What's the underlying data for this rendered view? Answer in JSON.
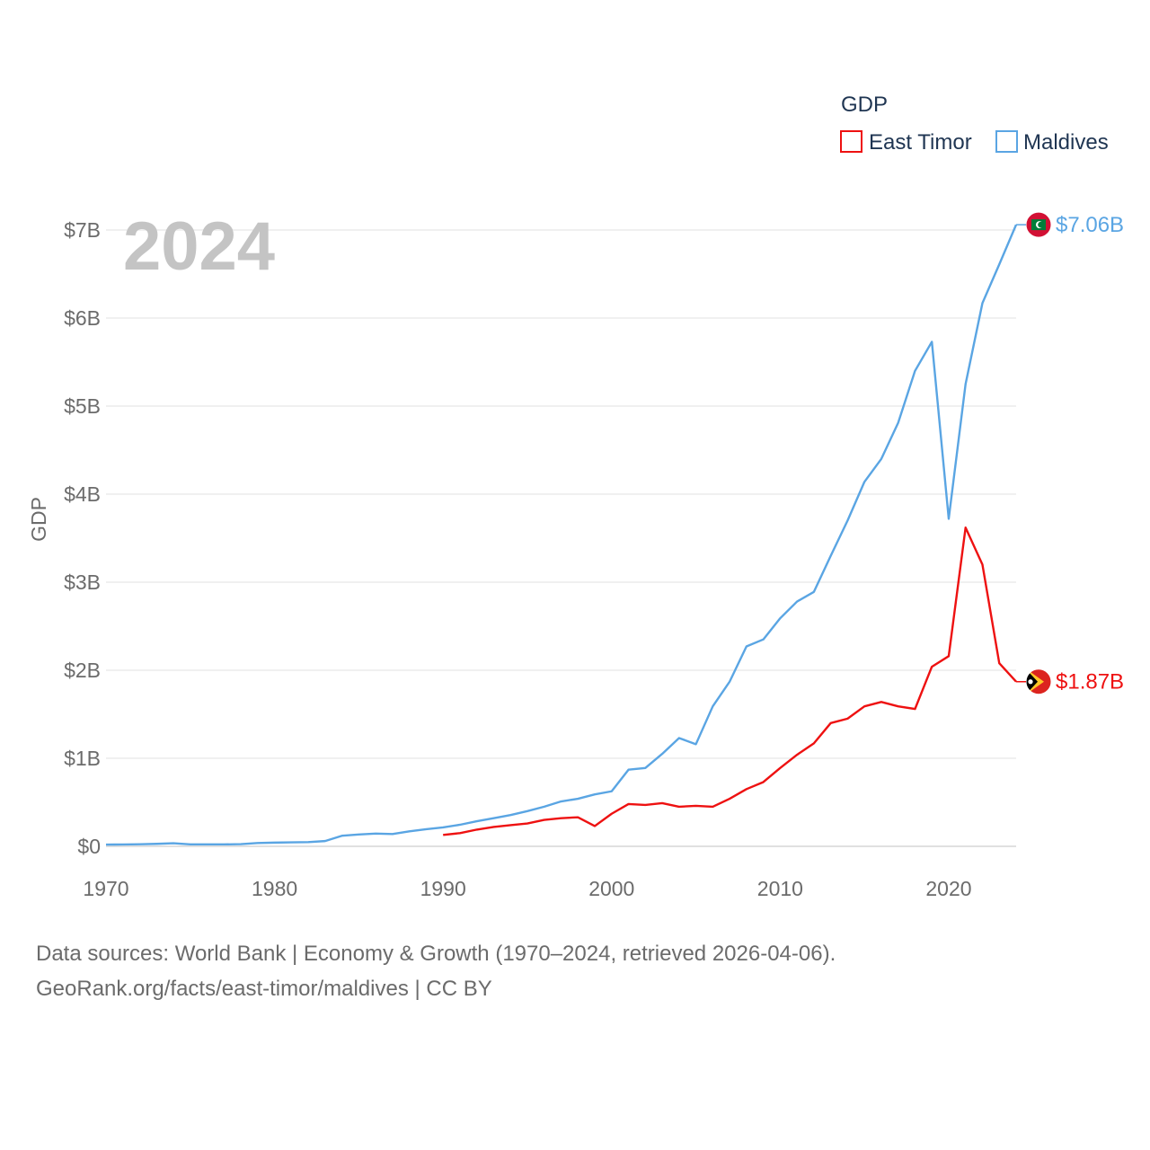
{
  "chart_data": {
    "type": "line",
    "year_label": "2024",
    "ylabel": "GDP",
    "legend": {
      "title": "GDP",
      "position": "top-right"
    },
    "ylim": [
      0,
      7000000000
    ],
    "y_ticks": [
      {
        "value": 0,
        "label": "$0"
      },
      {
        "value": 1000000000,
        "label": "$1B"
      },
      {
        "value": 2000000000,
        "label": "$2B"
      },
      {
        "value": 3000000000,
        "label": "$3B"
      },
      {
        "value": 4000000000,
        "label": "$4B"
      },
      {
        "value": 5000000000,
        "label": "$5B"
      },
      {
        "value": 6000000000,
        "label": "$6B"
      },
      {
        "value": 7000000000,
        "label": "$7B"
      }
    ],
    "xlim": [
      1970,
      2024
    ],
    "x_ticks": [
      {
        "value": 1970,
        "label": "1970"
      },
      {
        "value": 1980,
        "label": "1980"
      },
      {
        "value": 1990,
        "label": "1990"
      },
      {
        "value": 2000,
        "label": "2000"
      },
      {
        "value": 2010,
        "label": "2010"
      },
      {
        "value": 2020,
        "label": "2020"
      }
    ],
    "series": [
      {
        "name": "East Timor",
        "color": "#ee1111",
        "end_label": "$1.87B",
        "flag": "east-timor-flag",
        "x": [
          1990,
          1991,
          1992,
          1993,
          1994,
          1995,
          1996,
          1997,
          1998,
          1999,
          2000,
          2001,
          2002,
          2003,
          2004,
          2005,
          2006,
          2007,
          2008,
          2009,
          2010,
          2011,
          2012,
          2013,
          2014,
          2015,
          2016,
          2017,
          2018,
          2019,
          2020,
          2021,
          2022,
          2023,
          2024
        ],
        "values": [
          0.13,
          0.15,
          0.19,
          0.22,
          0.24,
          0.26,
          0.3,
          0.32,
          0.33,
          0.23,
          0.37,
          0.48,
          0.47,
          0.49,
          0.45,
          0.46,
          0.45,
          0.54,
          0.65,
          0.73,
          0.89,
          1.04,
          1.17,
          1.4,
          1.45,
          1.59,
          1.64,
          1.59,
          1.56,
          2.04,
          2.16,
          3.62,
          3.2,
          2.08,
          1.87
        ]
      },
      {
        "name": "Maldives",
        "color": "#5aa5e3",
        "end_label": "$7.06B",
        "flag": "maldives-flag",
        "x": [
          1970,
          1971,
          1972,
          1973,
          1974,
          1975,
          1976,
          1977,
          1978,
          1979,
          1980,
          1981,
          1982,
          1983,
          1984,
          1985,
          1986,
          1987,
          1988,
          1989,
          1990,
          1991,
          1992,
          1993,
          1994,
          1995,
          1996,
          1997,
          1998,
          1999,
          2000,
          2001,
          2002,
          2003,
          2004,
          2005,
          2006,
          2007,
          2008,
          2009,
          2010,
          2011,
          2012,
          2013,
          2014,
          2015,
          2016,
          2017,
          2018,
          2019,
          2020,
          2021,
          2022,
          2023,
          2024
        ],
        "values": [
          0.02,
          0.021,
          0.024,
          0.028,
          0.035,
          0.022,
          0.022,
          0.022,
          0.025,
          0.038,
          0.042,
          0.045,
          0.048,
          0.06,
          0.12,
          0.135,
          0.145,
          0.14,
          0.17,
          0.195,
          0.215,
          0.245,
          0.285,
          0.32,
          0.355,
          0.4,
          0.45,
          0.51,
          0.54,
          0.59,
          0.625,
          0.87,
          0.89,
          1.05,
          1.23,
          1.16,
          1.59,
          1.87,
          2.27,
          2.35,
          2.59,
          2.78,
          2.89,
          3.3,
          3.7,
          4.14,
          4.4,
          4.81,
          5.4,
          5.73,
          3.72,
          5.25,
          6.17,
          6.61,
          7.06
        ]
      }
    ]
  },
  "source": {
    "line1": "Data sources: World Bank | Economy & Growth (1970–2024, retrieved 2026-04-06).",
    "line2": "GeoRank.org/facts/east-timor/maldives | CC BY"
  }
}
